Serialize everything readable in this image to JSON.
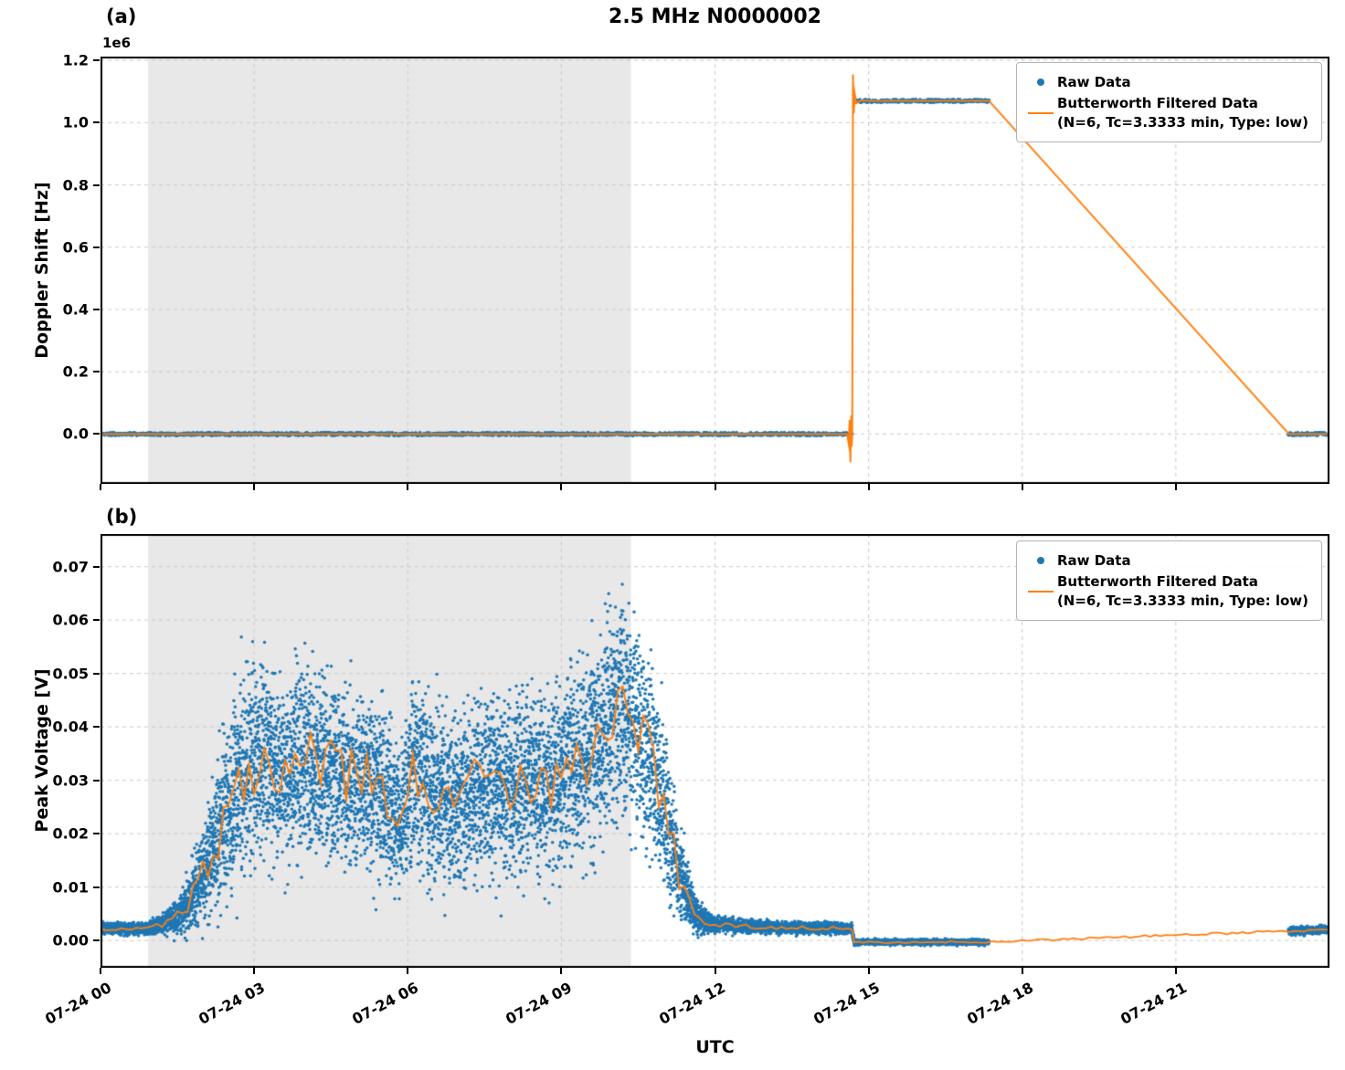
{
  "title": "2.5 MHz N0000002",
  "xlabel": "UTC",
  "panels": [
    {
      "label": "(a)",
      "ylabel": "Doppler Shift [Hz]",
      "offset_text": "1e6"
    },
    {
      "label": "(b)",
      "ylabel": "Peak Voltage [V]"
    }
  ],
  "legend": {
    "raw_label": "Raw Data",
    "filtered_label": "Butterworth Filtered Data",
    "filtered_sublabel": "(N=6, Tc=3.3333 min, Type: low)"
  },
  "colors": {
    "raw": "#1f77b4",
    "filtered": "#ff7f0e",
    "shade": "#e8e8e8",
    "grid": "#c9c9c9",
    "axis": "#000000",
    "legend_border": "#b3b3b3"
  },
  "chart_data": [
    {
      "type": "scatter+line",
      "panel": "a",
      "title": "2.5 MHz N0000002",
      "xlabel": "UTC",
      "ylabel": "Doppler Shift [Hz]",
      "y_offset_label": "1e6",
      "xlim_hours": [
        0,
        24
      ],
      "ylim": [
        -160000,
        1212000
      ],
      "yticks": [
        0,
        200000,
        400000,
        600000,
        800000,
        1000000,
        1200000
      ],
      "ytick_labels": [
        "0.0",
        "0.2",
        "0.4",
        "0.6",
        "0.8",
        "1.0",
        "1.2"
      ],
      "xticks_hours": [
        0,
        3,
        6,
        9,
        12,
        15,
        18,
        21
      ],
      "xtick_labels": [
        "07-24 00",
        "07-24 03",
        "07-24 06",
        "07-24 09",
        "07-24 12",
        "07-24 15",
        "07-24 18",
        "07-24 21"
      ],
      "shaded_region_hours": [
        0.93,
        10.36
      ],
      "grid": "dashed",
      "legend_position": "upper right",
      "series": [
        {
          "name": "Raw Data",
          "style": "scatter",
          "segments": [
            {
              "t_start": 0,
              "t_end": 14.68,
              "value": 0
            },
            {
              "t_start": 14.72,
              "t_end": 17.35,
              "value": 1070000
            },
            {
              "t_start": 23.2,
              "t_end": 24,
              "value": 0
            }
          ]
        },
        {
          "name": "Butterworth Filtered Data (N=6, Tc=3.3333 min, Type: low)",
          "style": "line",
          "points": [
            [
              0,
              0
            ],
            [
              14.58,
              0
            ],
            [
              14.61,
              -30000
            ],
            [
              14.63,
              45000
            ],
            [
              14.645,
              -90000
            ],
            [
              14.66,
              60000
            ],
            [
              14.67,
              -40000
            ],
            [
              14.68,
              5000
            ],
            [
              14.695,
              1155000
            ],
            [
              14.71,
              1030000
            ],
            [
              14.73,
              1092000
            ],
            [
              14.76,
              1062000
            ],
            [
              14.85,
              1071000
            ],
            [
              15.0,
              1070000
            ],
            [
              17.35,
              1070000
            ],
            [
              23.2,
              1500
            ],
            [
              23.25,
              0
            ],
            [
              24,
              0
            ]
          ]
        }
      ]
    },
    {
      "type": "scatter+line",
      "panel": "b",
      "xlabel": "UTC",
      "ylabel": "Peak Voltage [V]",
      "xlim_hours": [
        0,
        24
      ],
      "ylim": [
        -0.0051,
        0.0761
      ],
      "yticks": [
        0,
        0.01,
        0.02,
        0.03,
        0.04,
        0.05,
        0.06,
        0.07
      ],
      "ytick_labels": [
        "0.00",
        "0.01",
        "0.02",
        "0.03",
        "0.04",
        "0.05",
        "0.06",
        "0.07"
      ],
      "xticks_hours": [
        0,
        3,
        6,
        9,
        12,
        15,
        18,
        21
      ],
      "xtick_labels": [
        "07-24 00",
        "07-24 03",
        "07-24 06",
        "07-24 09",
        "07-24 12",
        "07-24 15",
        "07-24 18",
        "07-24 21"
      ],
      "shaded_region_hours": [
        0.93,
        10.36
      ],
      "grid": "dashed",
      "legend_position": "upper right",
      "series_names": [
        "Raw Data",
        "Butterworth Filtered Data (N=6, Tc=3.3333 min, Type: low)"
      ],
      "data_intervals_hours": [
        [
          0,
          17.35
        ],
        [
          23.2,
          24
        ]
      ],
      "envelope_t_mean_spread": [
        [
          0.0,
          0.0022,
          0.0008
        ],
        [
          0.9,
          0.0022,
          0.0009
        ],
        [
          1.2,
          0.003,
          0.0015
        ],
        [
          1.6,
          0.005,
          0.003
        ],
        [
          2.0,
          0.012,
          0.007
        ],
        [
          2.4,
          0.022,
          0.012
        ],
        [
          2.8,
          0.032,
          0.014
        ],
        [
          3.2,
          0.034,
          0.014
        ],
        [
          3.6,
          0.032,
          0.013
        ],
        [
          4.0,
          0.034,
          0.014
        ],
        [
          4.4,
          0.033,
          0.013
        ],
        [
          4.8,
          0.03,
          0.013
        ],
        [
          5.2,
          0.031,
          0.013
        ],
        [
          5.6,
          0.026,
          0.012
        ],
        [
          5.9,
          0.023,
          0.011
        ],
        [
          6.1,
          0.031,
          0.013
        ],
        [
          6.5,
          0.028,
          0.013
        ],
        [
          7.0,
          0.026,
          0.012
        ],
        [
          7.4,
          0.03,
          0.013
        ],
        [
          7.8,
          0.028,
          0.013
        ],
        [
          8.2,
          0.03,
          0.013
        ],
        [
          8.6,
          0.029,
          0.013
        ],
        [
          9.0,
          0.031,
          0.013
        ],
        [
          9.4,
          0.033,
          0.014
        ],
        [
          9.8,
          0.038,
          0.015
        ],
        [
          10.1,
          0.044,
          0.016
        ],
        [
          10.4,
          0.042,
          0.015
        ],
        [
          10.7,
          0.036,
          0.014
        ],
        [
          11.0,
          0.026,
          0.012
        ],
        [
          11.3,
          0.012,
          0.007
        ],
        [
          11.6,
          0.005,
          0.003
        ],
        [
          11.9,
          0.0032,
          0.0012
        ],
        [
          12.6,
          0.0026,
          0.001
        ],
        [
          13.5,
          0.0024,
          0.0009
        ],
        [
          14.68,
          0.0022,
          0.0008
        ],
        [
          14.72,
          -0.0003,
          0.0004
        ],
        [
          17.35,
          -0.0003,
          0.0004
        ],
        [
          23.2,
          0.0018,
          0.0006
        ],
        [
          24.0,
          0.002,
          0.0006
        ]
      ],
      "raw_scatter": {
        "seed": 12345,
        "dt_hours": 0.0016
      },
      "filtered": {
        "seed": 777,
        "wiggle_grid_hours": 0.1,
        "wiggle_amp": 0.42,
        "dt_hours": 0.02
      }
    }
  ]
}
